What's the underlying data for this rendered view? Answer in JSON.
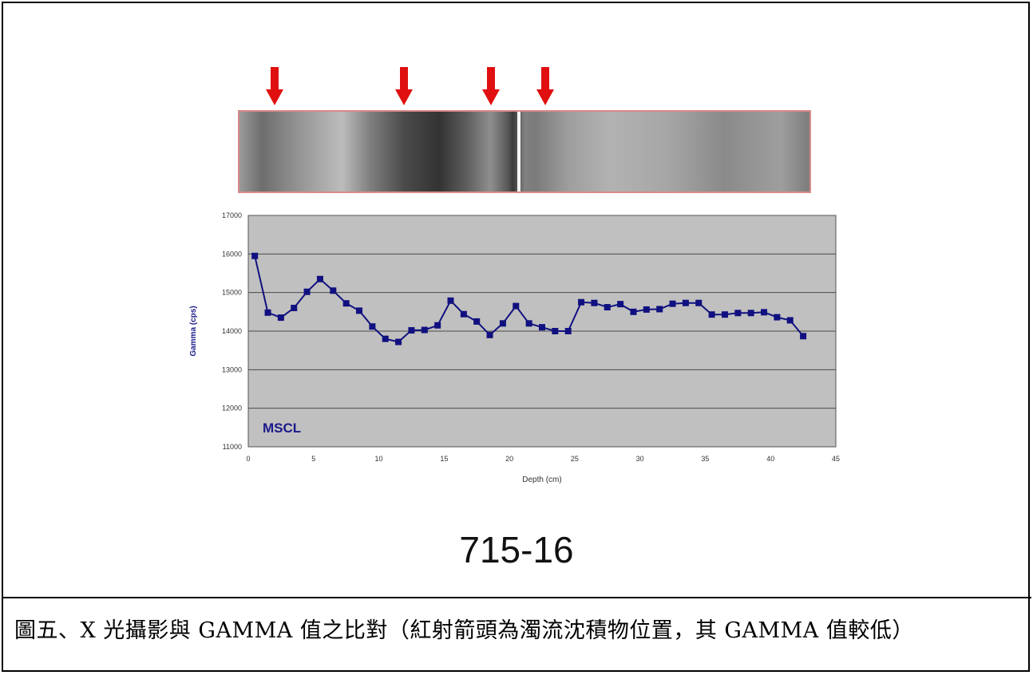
{
  "figure": {
    "sample_id": "715-16",
    "caption": "圖五、X 光攝影與 GAMMA 值之比對（紅射箭頭為濁流沈積物位置，其 GAMMA 值較低）"
  },
  "annotations": {
    "arrow_color": "#e01010",
    "arrow_count": 4
  },
  "chart_data": {
    "type": "line",
    "title": "",
    "xlabel": "Depth (cm)",
    "ylabel": "Gamma (cps)",
    "xlim": [
      0,
      45
    ],
    "ylim": [
      11000,
      17000
    ],
    "xticks": [
      0,
      5,
      10,
      15,
      20,
      25,
      30,
      35,
      40,
      45
    ],
    "yticks": [
      11000,
      12000,
      13000,
      14000,
      15000,
      16000,
      17000
    ],
    "grid": "horizontal",
    "plot_background": "#c0c0c0",
    "line_color": "#101080",
    "annotation": "MSCL",
    "series": [
      {
        "x": [
          0.5,
          1.5,
          2.5,
          3.5,
          4.5,
          5.5,
          6.5,
          7.5,
          8.5,
          9.5,
          10.5,
          11.5,
          12.5,
          13.5,
          14.5,
          15.5,
          16.5,
          17.5,
          18.5,
          19.5,
          20.5,
          21.5,
          22.5,
          23.5,
          24.5,
          25.5,
          26.5,
          27.5,
          28.5,
          29.5,
          30.5,
          31.5,
          32.5,
          33.5,
          34.5,
          35.5,
          36.5,
          37.5,
          38.5,
          39.5,
          40.5,
          41.5,
          42.5
        ],
        "y": [
          15950,
          14480,
          14350,
          14600,
          15020,
          15350,
          15050,
          14720,
          14530,
          14120,
          13800,
          13720,
          14020,
          14030,
          14150,
          14790,
          14440,
          14250,
          13900,
          14200,
          14650,
          14200,
          14100,
          14000,
          14000,
          14750,
          14730,
          14620,
          14700,
          14500,
          14560,
          14570,
          14710,
          14730,
          14730,
          14430,
          14430,
          14470,
          14470,
          14490,
          14360,
          14280,
          13870
        ]
      }
    ]
  }
}
